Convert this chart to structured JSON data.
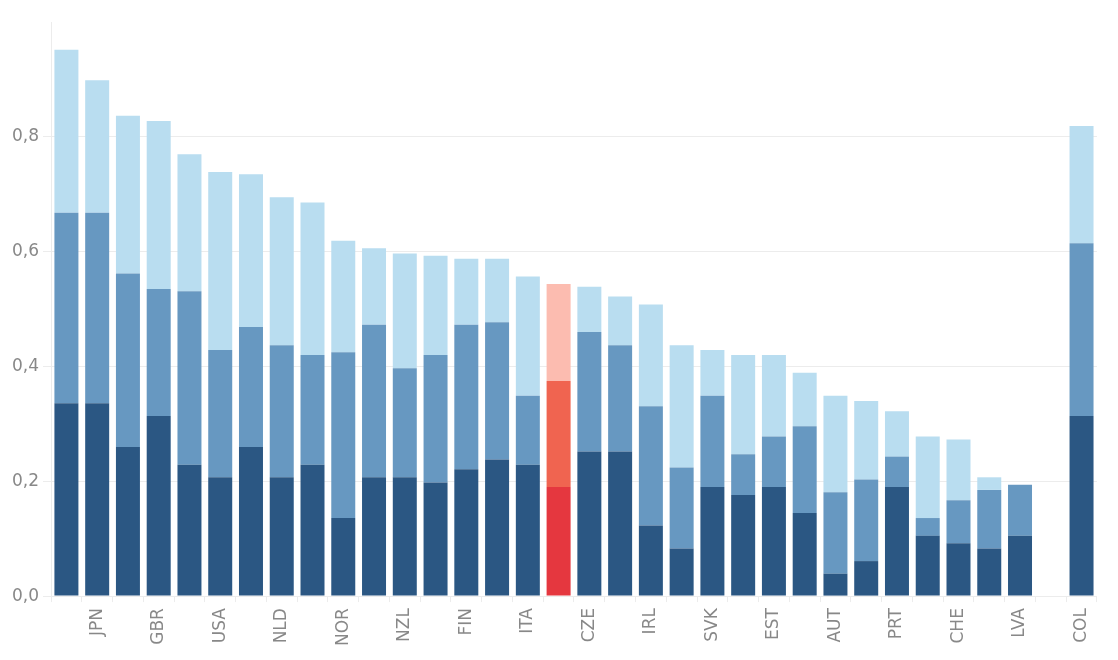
{
  "chart_data": {
    "type": "bar",
    "stacked": true,
    "grid": "y",
    "legend": false,
    "categories": [
      null,
      "JPN",
      null,
      "GBR",
      null,
      "USA",
      null,
      "NLD",
      null,
      "NOR",
      null,
      "NZL",
      null,
      "FIN",
      null,
      "ITA",
      null,
      "CZE",
      null,
      "IRL",
      null,
      "SVK",
      null,
      "EST",
      null,
      "AUT",
      null,
      "PRT",
      null,
      "CHE",
      null,
      "LVA",
      null,
      "COL"
    ],
    "ylim": [
      0,
      1.0
    ],
    "yticks": [
      {
        "value": 0,
        "label": "0,0"
      },
      {
        "value": 0.2,
        "label": "0,2"
      },
      {
        "value": 0.4,
        "label": "0,4"
      },
      {
        "value": 0.6,
        "label": "0,6"
      },
      {
        "value": 0.8,
        "label": "0,8"
      }
    ],
    "series": [
      {
        "colors": [
          "#2b5783",
          "#2b5783",
          "#2b5783",
          "#2b5783",
          "#2b5783",
          "#2b5783",
          "#2b5783",
          "#2b5783",
          "#2b5783",
          "#2b5783",
          "#2b5783",
          "#2b5783",
          "#2b5783",
          "#2b5783",
          "#2b5783",
          "#2b5783",
          "#e5373f",
          "#2b5783",
          "#2b5783",
          "#2b5783",
          "#2b5783",
          "#2b5783",
          "#2b5783",
          "#2b5783",
          "#2b5783",
          "#2b5783",
          "#2b5783",
          "#2b5783",
          "#2b5783",
          "#2b5783",
          "#2b5783",
          "#2b5783",
          "#2b5783",
          "#2b5783"
        ],
        "values": [
          0.336,
          0.336,
          0.26,
          0.314,
          0.229,
          0.207,
          0.26,
          0.207,
          0.229,
          0.136,
          0.207,
          0.207,
          0.198,
          0.221,
          0.238,
          0.229,
          0.19,
          0.252,
          0.252,
          0.123,
          0.083,
          0.19,
          0.176,
          0.19,
          0.145,
          0.039,
          0.061,
          0.19,
          0.105,
          0.092,
          0.083,
          0.105,
          null,
          0.314
        ]
      },
      {
        "colors": [
          "#6798c1",
          "#6798c1",
          "#6798c1",
          "#6798c1",
          "#6798c1",
          "#6798c1",
          "#6798c1",
          "#6798c1",
          "#6798c1",
          "#6798c1",
          "#6798c1",
          "#6798c1",
          "#6798c1",
          "#6798c1",
          "#6798c1",
          "#6798c1",
          "#f06450",
          "#6798c1",
          "#6798c1",
          "#6798c1",
          "#6798c1",
          "#6798c1",
          "#6798c1",
          "#6798c1",
          "#6798c1",
          "#6798c1",
          "#6798c1",
          "#6798c1",
          "#6798c1",
          "#6798c1",
          "#6798c1",
          "#6798c1",
          "#6798c1",
          "#6798c1"
        ],
        "values": [
          0.332,
          0.332,
          0.302,
          0.221,
          0.302,
          0.222,
          0.209,
          0.23,
          0.191,
          0.289,
          0.266,
          0.19,
          0.222,
          0.252,
          0.239,
          0.12,
          0.185,
          0.208,
          0.185,
          0.208,
          0.141,
          0.159,
          0.071,
          0.088,
          0.151,
          0.142,
          0.142,
          0.053,
          0.031,
          0.075,
          0.102,
          0.089,
          null,
          0.301
        ]
      },
      {
        "colors": [
          "#b9ddf0",
          "#b9ddf0",
          "#b9ddf0",
          "#b9ddf0",
          "#b9ddf0",
          "#b9ddf0",
          "#b9ddf0",
          "#b9ddf0",
          "#b9ddf0",
          "#b9ddf0",
          "#b9ddf0",
          "#b9ddf0",
          "#b9ddf0",
          "#b9ddf0",
          "#b9ddf0",
          "#b9ddf0",
          "#fcbcb0",
          "#b9ddf0",
          "#b9ddf0",
          "#b9ddf0",
          "#b9ddf0",
          "#b9ddf0",
          "#b9ddf0",
          "#b9ddf0",
          "#b9ddf0",
          "#b9ddf0",
          "#b9ddf0",
          "#b9ddf0",
          "#b9ddf0",
          "#b9ddf0",
          "#b9ddf0",
          "#b9ddf0",
          "#b9ddf0",
          "#b9ddf0"
        ],
        "values": [
          0.284,
          0.231,
          0.275,
          0.293,
          0.239,
          0.31,
          0.266,
          0.258,
          0.266,
          0.194,
          0.133,
          0.2,
          0.173,
          0.115,
          0.111,
          0.208,
          0.169,
          0.079,
          0.085,
          0.177,
          0.213,
          0.08,
          0.173,
          0.142,
          0.093,
          0.168,
          0.137,
          0.079,
          0.142,
          0.106,
          0.022,
          null,
          null,
          0.204
        ]
      }
    ]
  }
}
